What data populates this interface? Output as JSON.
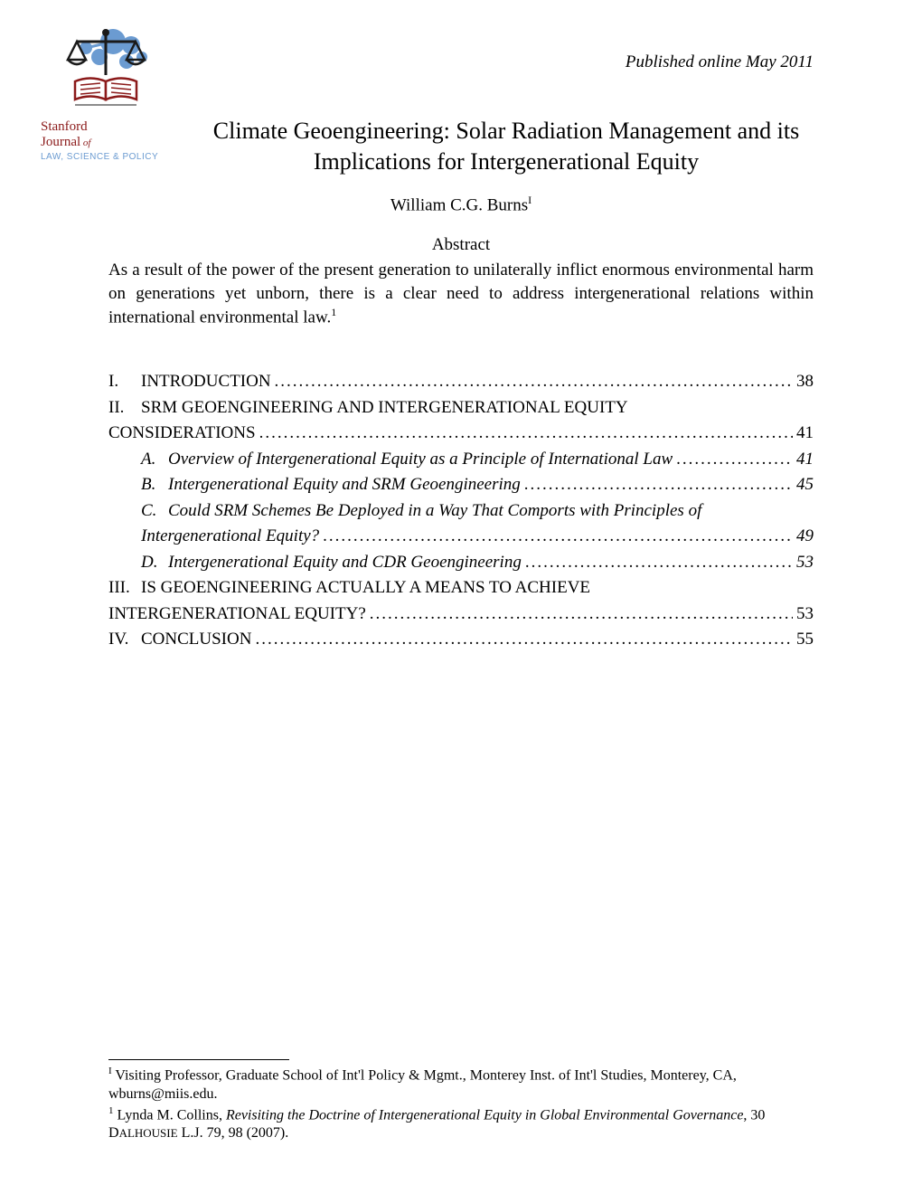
{
  "header": {
    "published_line": "Published online May 2011"
  },
  "logo": {
    "line1": "Stanford",
    "line2a": "Journal",
    "line2b": " of",
    "line3": "LAW, SCIENCE & POLICY",
    "scale_color": "#6b9bd1",
    "book_color": "#8b1a1a",
    "black": "#1a1a1a"
  },
  "title": "Climate Geoengineering: Solar Radiation Management and its Implications for Intergenerational Equity",
  "author": {
    "name": "William C.G. Burns",
    "marker": "I"
  },
  "abstract": {
    "heading": "Abstract",
    "text": "As a result of the power of the present generation to unilaterally inflict enormous environmental harm on generations yet unborn, there is a clear need to address intergenerational relations within international environmental law.",
    "fn_marker": "1"
  },
  "toc": [
    {
      "type": "main",
      "num": "I.",
      "label": "INTRODUCTION",
      "page": "38"
    },
    {
      "type": "main-nowrap",
      "num": "II.",
      "label": "SRM GEOENGINEERING AND INTERGENERATIONAL EQUITY"
    },
    {
      "type": "continue",
      "label": "CONSIDERATIONS",
      "page": "41"
    },
    {
      "type": "sub",
      "num": "A.",
      "label": "Overview of Intergenerational Equity as a Principle of International Law",
      "page": "41"
    },
    {
      "type": "sub",
      "num": "B.",
      "label": "Intergenerational Equity and SRM Geoengineering",
      "page": "45"
    },
    {
      "type": "sub-nowrap",
      "num": "C.",
      "label": "Could SRM Schemes Be Deployed in a Way That Comports with Principles of"
    },
    {
      "type": "sub-continue",
      "label": "Intergenerational Equity?",
      "page": "49"
    },
    {
      "type": "sub",
      "num": "D.",
      "label": "Intergenerational Equity and CDR Geoengineering",
      "page": "53"
    },
    {
      "type": "main-nowrap",
      "num": "III.",
      "label": "IS GEOENGINEERING ACTUALLY A MEANS TO ACHIEVE"
    },
    {
      "type": "continue",
      "label": "INTERGENERATIONAL EQUITY?",
      "page": "53"
    },
    {
      "type": "main",
      "num": "IV.",
      "label": "CONCLUSION",
      "page": "55"
    }
  ],
  "footnotes": [
    {
      "marker": "I",
      "text_parts": [
        {
          "text": " Visiting Professor, Graduate School of Int'l Policy & Mgmt., Monterey Inst. of Int'l Studies, Monterey, CA, wburns@miis.edu.",
          "style": "normal"
        }
      ]
    },
    {
      "marker": "1",
      "text_parts": [
        {
          "text": " Lynda M. Collins, ",
          "style": "normal"
        },
        {
          "text": "Revisiting the Doctrine of Intergenerational Equity in Global Environmental Governance",
          "style": "italic"
        },
        {
          "text": ", 30 D",
          "style": "normal"
        },
        {
          "text": "ALHOUSIE",
          "style": "smallcaps"
        },
        {
          "text": " L.J. 79, 98 (2007).",
          "style": "normal"
        }
      ]
    }
  ]
}
